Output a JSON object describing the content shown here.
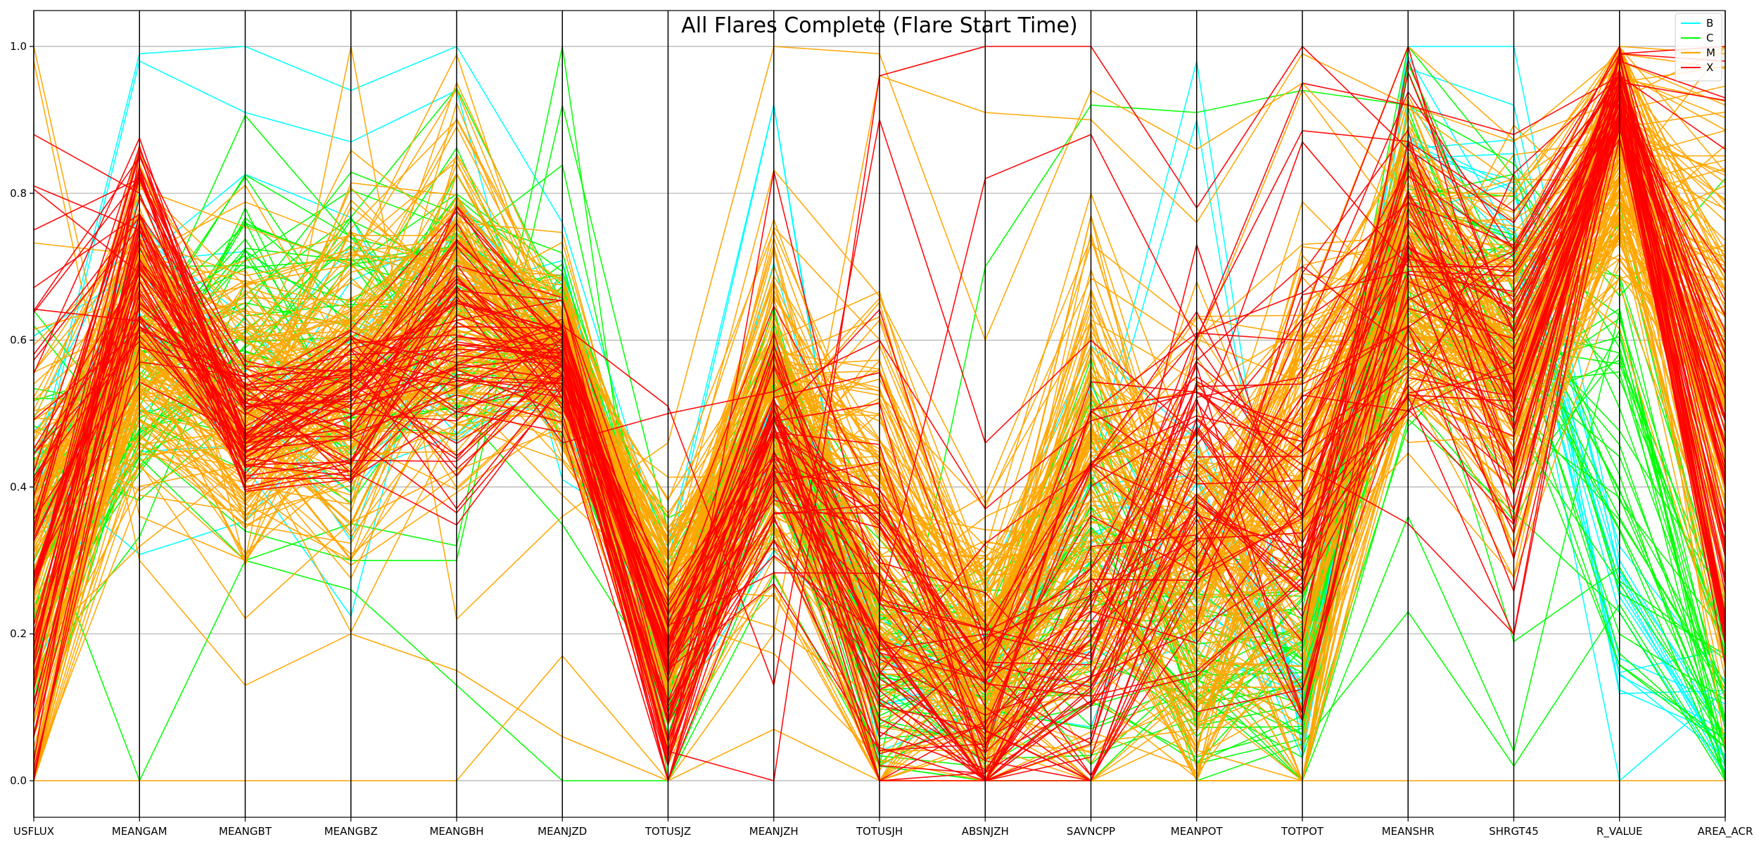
{
  "chart_data": {
    "type": "parallel_coordinates",
    "title": "All Flares Complete (Flare Start Time)",
    "axes": [
      "USFLUX",
      "MEANGAM",
      "MEANGBT",
      "MEANGBZ",
      "MEANGBH",
      "MEANJZD",
      "TOTUSJZ",
      "MEANJZH",
      "TOTUSJH",
      "ABSNJZH",
      "SAVNCPP",
      "MEANPOT",
      "TOTPOT",
      "MEANSHR",
      "SHRGT45",
      "R_VALUE",
      "AREA_ACR"
    ],
    "ylim": [
      0,
      1
    ],
    "yticks": [
      "0.0",
      "0.2",
      "0.4",
      "0.6",
      "0.8",
      "1.0"
    ],
    "grid": true,
    "legend_position": "top-right",
    "series": [
      {
        "name": "B",
        "color": "#00ffff",
        "count": 14,
        "profile": [
          0.36,
          0.6,
          0.52,
          0.5,
          0.66,
          0.6,
          0.16,
          0.48,
          0.14,
          0.12,
          0.3,
          0.3,
          0.12,
          0.86,
          0.78,
          0.22,
          0.08
        ],
        "spread": [
          0.18,
          0.18,
          0.22,
          0.22,
          0.18,
          0.14,
          0.08,
          0.16,
          0.1,
          0.1,
          0.2,
          0.2,
          0.1,
          0.1,
          0.1,
          0.18,
          0.1
        ],
        "lines": [
          [
            0.42,
            0.99,
            1.0,
            0.94,
            1.0,
            0.76,
            0.3,
            0.92,
            0.04,
            0.1,
            0.42,
            0.98,
            0.04,
            1.0,
            1.0,
            0.3,
            0.06
          ],
          [
            0.4,
            0.98,
            0.91,
            0.87,
            0.94,
            0.41,
            0.32,
            0.92,
            0.02,
            0.1,
            0.4,
            0.9,
            0.04,
            0.97,
            0.92,
            0.28,
            0.02
          ]
        ]
      },
      {
        "name": "C",
        "color": "#00ff00",
        "count": 38,
        "profile": [
          0.3,
          0.55,
          0.62,
          0.6,
          0.66,
          0.6,
          0.18,
          0.5,
          0.16,
          0.14,
          0.32,
          0.16,
          0.16,
          0.74,
          0.6,
          0.45,
          0.08
        ],
        "spread": [
          0.2,
          0.16,
          0.18,
          0.18,
          0.18,
          0.12,
          0.1,
          0.16,
          0.14,
          0.12,
          0.22,
          0.14,
          0.12,
          0.18,
          0.2,
          0.22,
          0.1
        ],
        "lines": [
          [
            0.38,
            0.0,
            0.3,
            0.26,
            0.13,
            0.0,
            0.0,
            0.34,
            0.02,
            0.0,
            0.0,
            0.0,
            0.05,
            0.23,
            0.02,
            0.24,
            0.01
          ],
          [
            0.62,
            0.44,
            0.3,
            0.35,
            0.32,
            1.0,
            0.0,
            0.28,
            0.02,
            0.0,
            0.0,
            0.14,
            0.0,
            0.36,
            0.04,
            0.64,
            0.02
          ],
          [
            0.64,
            0.46,
            0.34,
            0.3,
            0.3,
            0.92,
            0.34,
            0.4,
            0.02,
            0.7,
            0.92,
            0.91,
            0.94,
            0.92,
            0.84,
            0.66,
            0.82
          ]
        ]
      },
      {
        "name": "M",
        "color": "#ffa500",
        "count": 160,
        "profile": [
          0.3,
          0.62,
          0.52,
          0.54,
          0.66,
          0.58,
          0.22,
          0.5,
          0.32,
          0.16,
          0.4,
          0.3,
          0.38,
          0.72,
          0.6,
          0.86,
          0.6
        ],
        "spread": [
          0.26,
          0.16,
          0.16,
          0.18,
          0.18,
          0.1,
          0.14,
          0.18,
          0.28,
          0.16,
          0.28,
          0.24,
          0.32,
          0.2,
          0.2,
          0.14,
          0.34
        ],
        "lines": [
          [
            0.0,
            0.0,
            0.0,
            0.0,
            0.0,
            0.17,
            0.0,
            0.07,
            0.0,
            0.0,
            0.0,
            0.0,
            0.0,
            0.0,
            0.0,
            0.0,
            0.0
          ],
          [
            0.98,
            0.3,
            0.13,
            0.2,
            0.15,
            0.06,
            0.0,
            0.2,
            0.96,
            0.91,
            0.9,
            0.76,
            0.99,
            0.92,
            0.87,
            0.99,
            0.97
          ],
          [
            1.0,
            0.36,
            0.3,
            1.0,
            0.22,
            0.36,
            0.46,
            1.0,
            0.99,
            0.6,
            0.94,
            0.86,
            0.95,
            0.8,
            0.8,
            0.98,
            0.92
          ]
        ]
      },
      {
        "name": "X",
        "color": "#ff0000",
        "count": 55,
        "profile": [
          0.3,
          0.72,
          0.5,
          0.52,
          0.58,
          0.58,
          0.14,
          0.46,
          0.22,
          0.1,
          0.2,
          0.4,
          0.4,
          0.72,
          0.58,
          0.93,
          0.4
        ],
        "spread": [
          0.28,
          0.14,
          0.1,
          0.1,
          0.14,
          0.06,
          0.12,
          0.14,
          0.26,
          0.14,
          0.24,
          0.24,
          0.32,
          0.2,
          0.24,
          0.05,
          0.3
        ],
        "lines": [
          [
            0.81,
            0.75,
            0.55,
            0.56,
            0.76,
            0.52,
            0.04,
            0.0,
            0.96,
            1.0,
            1.0,
            0.78,
            1.0,
            0.86,
            0.76,
            0.99,
            0.98
          ],
          [
            0.75,
            0.82,
            0.51,
            0.52,
            0.56,
            0.5,
            0.02,
            0.83,
            0.24,
            0.82,
            0.88,
            0.6,
            0.95,
            0.92,
            0.88,
            0.96,
            0.86
          ],
          [
            0.88,
            0.8,
            0.46,
            0.48,
            0.66,
            0.46,
            0.5,
            0.53,
            0.6,
            0.37,
            0.49,
            0.53,
            0.43,
            0.35,
            0.2,
            0.99,
            1.0
          ],
          [
            0.64,
            0.85,
            0.52,
            0.5,
            0.49,
            0.62,
            0.51,
            0.13,
            0.9,
            0.46,
            0.6,
            0.47,
            0.87,
            0.7,
            0.7,
            0.98,
            0.93
          ]
        ]
      }
    ]
  }
}
